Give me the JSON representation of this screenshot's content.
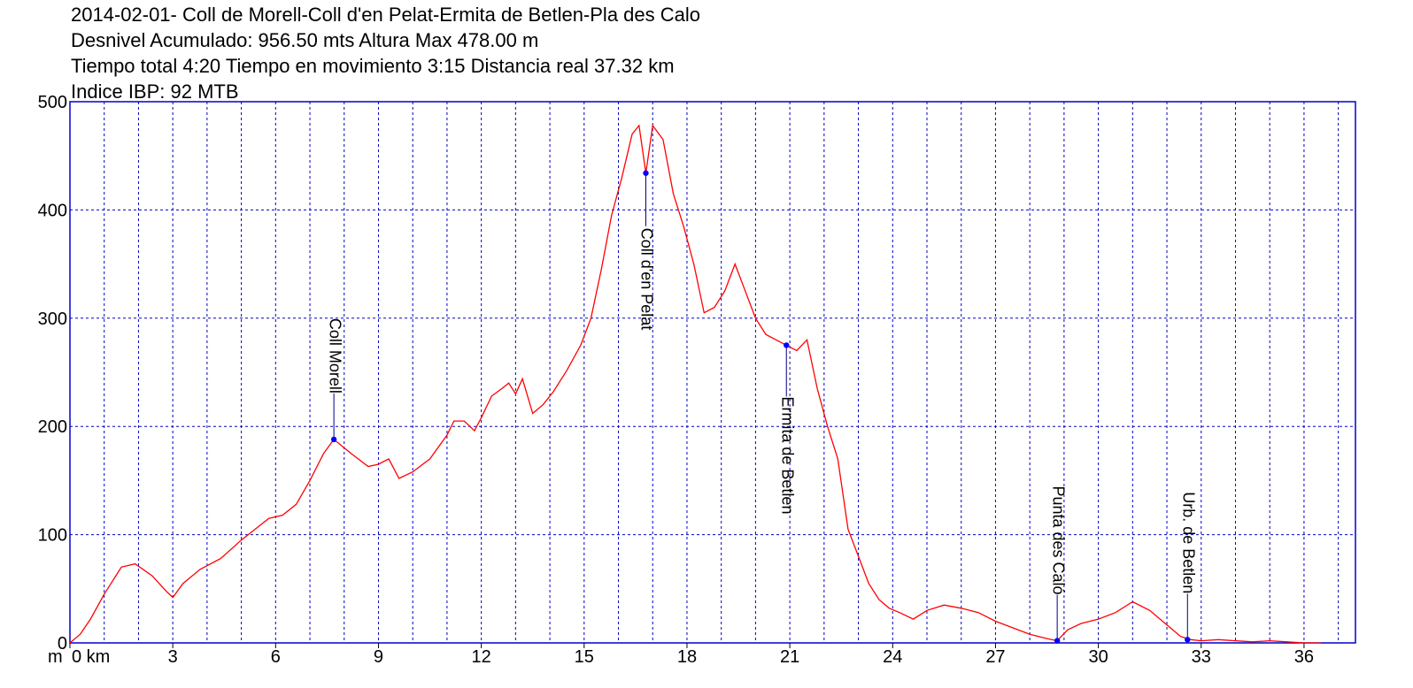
{
  "header": {
    "title": "2014-02-01- Coll de Morell-Coll d'en Pelat-Ermita de Betlen-Pla des Calo",
    "line2": "Desnivel Acumulado: 956.50 mts  Altura Max 478.00 m",
    "line3": "Tiempo total 4:20 Tiempo en movimiento 3:15 Distancia real 37.32 km",
    "line4": "Indice IBP: 92 MTB"
  },
  "chart_data": {
    "type": "line",
    "xlabel": "km",
    "ylabel": "m",
    "xlim": [
      0,
      37.5
    ],
    "ylim": [
      0,
      500
    ],
    "x_ticks": [
      0,
      3,
      6,
      9,
      12,
      15,
      18,
      21,
      24,
      27,
      30,
      33,
      36
    ],
    "y_ticks": [
      0,
      100,
      200,
      300,
      400,
      500
    ],
    "x_tick_labels": [
      "0 km",
      "3",
      "6",
      "9",
      "12",
      "15",
      "18",
      "21",
      "24",
      "27",
      "30",
      "33",
      "36"
    ],
    "y_tick_labels": [
      "0",
      "100",
      "200",
      "300",
      "400",
      "500"
    ],
    "y_unit_label": "m",
    "grid": true,
    "colors": {
      "line": "#ff0000",
      "grid": "#0000cc",
      "frame": "#0000cc",
      "marker": "#0000ff"
    },
    "series": [
      {
        "x": [
          0,
          0.3,
          0.6,
          1.0,
          1.5,
          1.9,
          2.4,
          2.8,
          3.0,
          3.3,
          3.8,
          4.4,
          5.0,
          5.4,
          5.8,
          6.2,
          6.6,
          7.0,
          7.4,
          7.7,
          8.2,
          8.7,
          9.0,
          9.3,
          9.6,
          10.0,
          10.5,
          11.0,
          11.2,
          11.5,
          11.8,
          12.0,
          12.3,
          12.6,
          12.8,
          13.0,
          13.2,
          13.5,
          13.8,
          14.1,
          14.5,
          14.9,
          15.2,
          15.5,
          15.8,
          16.1,
          16.4,
          16.6,
          16.8,
          17.0,
          17.3,
          17.6,
          17.9,
          18.2,
          18.5,
          18.8,
          19.1,
          19.4,
          19.7,
          20.0,
          20.3,
          20.6,
          20.9,
          21.2,
          21.5,
          21.8,
          22.1,
          22.4,
          22.7,
          23.0,
          23.3,
          23.6,
          23.9,
          24.2,
          24.6,
          25.0,
          25.5,
          26.0,
          26.5,
          27.0,
          27.5,
          28.0,
          28.5,
          28.8,
          29.1,
          29.5,
          30.0,
          30.5,
          31.0,
          31.5,
          31.8,
          32.1,
          32.4,
          32.7,
          33.0,
          33.5,
          34.0,
          34.5,
          35.0,
          35.5,
          36.0,
          36.5
        ],
        "y": [
          0,
          8,
          22,
          45,
          70,
          73,
          62,
          48,
          42,
          55,
          68,
          78,
          95,
          105,
          115,
          118,
          128,
          150,
          175,
          188,
          175,
          163,
          165,
          170,
          152,
          158,
          170,
          192,
          205,
          205,
          196,
          208,
          228,
          235,
          240,
          230,
          244,
          212,
          220,
          232,
          252,
          275,
          300,
          345,
          395,
          430,
          470,
          478,
          434,
          478,
          465,
          415,
          385,
          350,
          305,
          310,
          325,
          350,
          325,
          300,
          285,
          280,
          275,
          270,
          280,
          235,
          200,
          170,
          105,
          80,
          55,
          40,
          32,
          28,
          22,
          30,
          35,
          32,
          28,
          20,
          14,
          8,
          4,
          2,
          12,
          18,
          22,
          28,
          38,
          30,
          22,
          14,
          6,
          3,
          2,
          3,
          2,
          1,
          2,
          1,
          0,
          0
        ]
      }
    ],
    "waypoints": [
      {
        "name": "Coll Morell",
        "x": 7.7,
        "y": 188
      },
      {
        "name": "Coll d'en Pelat",
        "x": 16.8,
        "y": 434
      },
      {
        "name": "Ermita de Betlen",
        "x": 20.9,
        "y": 275
      },
      {
        "name": "Punta des Caló",
        "x": 28.8,
        "y": 2
      },
      {
        "name": "Urb. de Betlen",
        "x": 32.6,
        "y": 3
      }
    ]
  }
}
